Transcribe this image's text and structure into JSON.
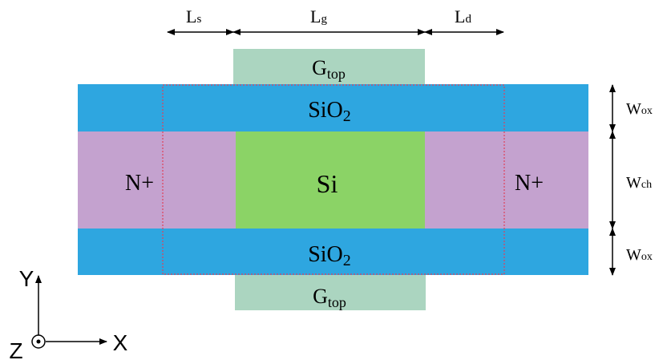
{
  "colors": {
    "oxide": "#2ea6e0",
    "source_drain": "#c4a2cf",
    "channel": "#8bd366",
    "gate": "#abd5c0",
    "boundary": "#e0405a",
    "ink": "#000000"
  },
  "dimensions": {
    "ls": {
      "main": "L",
      "sub": "s"
    },
    "lg": {
      "main": "L",
      "sub": "g"
    },
    "ld": {
      "main": "L",
      "sub": "d"
    },
    "wox_top": {
      "main": "W",
      "sub": "ox"
    },
    "wch": {
      "main": "W",
      "sub": "ch"
    },
    "wox_bottom": {
      "main": "W",
      "sub": "ox"
    }
  },
  "regions": {
    "gate_top": {
      "main": "G",
      "sub": "top"
    },
    "oxide_top": {
      "main": "SiO",
      "sub": "2"
    },
    "source": "N+",
    "channel": "Si",
    "drain": "N+",
    "oxide_bottom": {
      "main": "SiO",
      "sub": "2"
    },
    "gate_bottom": {
      "main": "G",
      "sub": "top"
    }
  },
  "axes": {
    "y": "Y",
    "x": "X",
    "z": "Z"
  }
}
